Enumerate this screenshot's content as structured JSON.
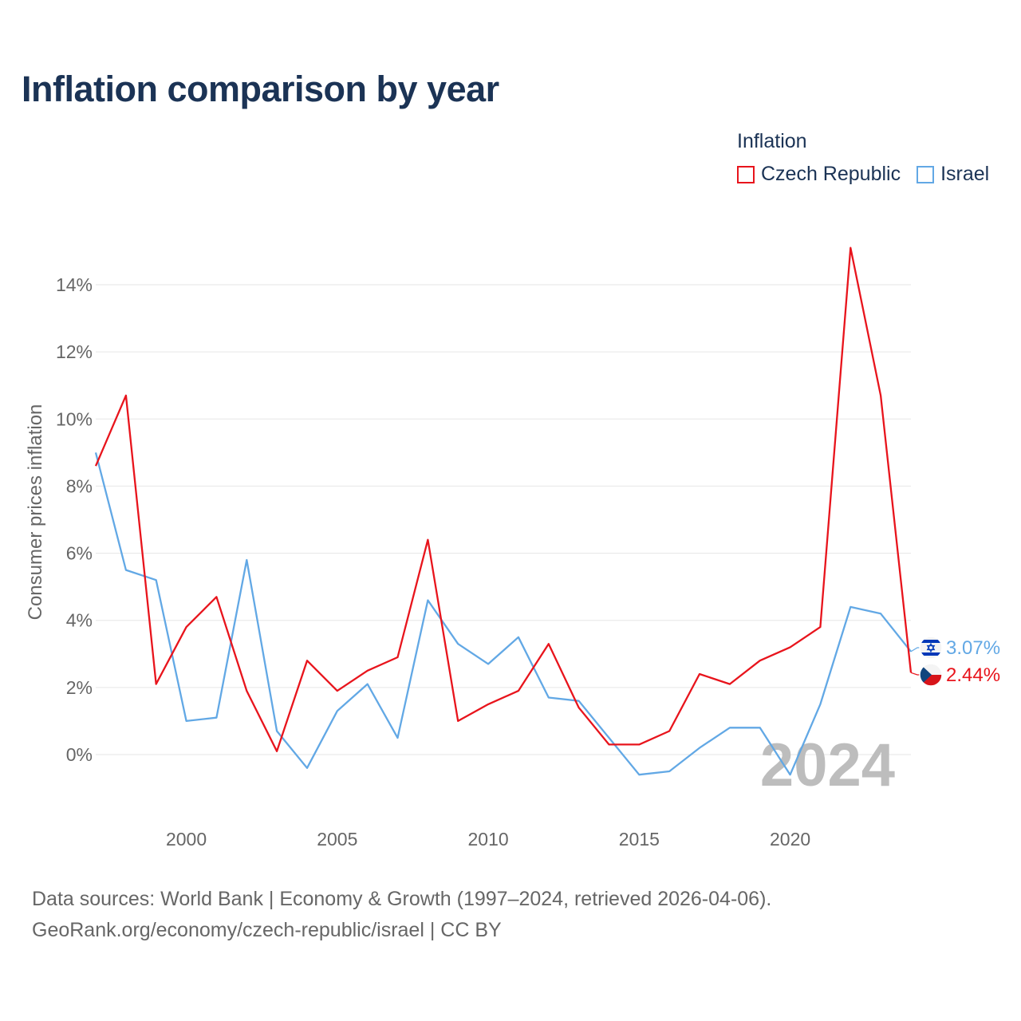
{
  "title": "Inflation comparison by year",
  "legend": {
    "title": "Inflation",
    "items": [
      {
        "label": "Czech Republic",
        "color": "#e8141c"
      },
      {
        "label": "Israel",
        "color": "#62a8e5"
      }
    ]
  },
  "source": {
    "line1": "Data sources: World Bank | Economy & Growth (1997–2024, retrieved 2026-04-06).",
    "line2": "GeoRank.org/economy/czech-republic/israel | CC BY"
  },
  "chart_data": {
    "type": "line",
    "title": "Inflation comparison by year",
    "xlabel": "",
    "ylabel": "Consumer prices inflation",
    "xlim": [
      1997,
      2024
    ],
    "ylim": [
      -1.5,
      15.5
    ],
    "yticks": [
      0,
      2,
      4,
      6,
      8,
      10,
      12,
      14
    ],
    "ytick_labels": [
      "0%",
      "2%",
      "4%",
      "6%",
      "8%",
      "10%",
      "12%",
      "14%"
    ],
    "xticks": [
      2000,
      2005,
      2010,
      2015,
      2020
    ],
    "xtick_labels": [
      "2000",
      "2005",
      "2010",
      "2015",
      "2020"
    ],
    "grid": true,
    "year_watermark": "2024",
    "x": [
      1997,
      1998,
      1999,
      2000,
      2001,
      2002,
      2003,
      2004,
      2005,
      2006,
      2007,
      2008,
      2009,
      2010,
      2011,
      2012,
      2013,
      2014,
      2015,
      2016,
      2017,
      2018,
      2019,
      2020,
      2021,
      2022,
      2023,
      2024
    ],
    "series": [
      {
        "name": "Czech Republic",
        "color": "#e8141c",
        "end_label": "2.44%",
        "values": [
          8.6,
          10.7,
          2.1,
          3.8,
          4.7,
          1.9,
          0.1,
          2.8,
          1.9,
          2.5,
          2.9,
          6.4,
          1.0,
          1.5,
          1.9,
          3.3,
          1.4,
          0.3,
          0.3,
          0.7,
          2.4,
          2.1,
          2.8,
          3.2,
          3.8,
          15.1,
          10.7,
          2.44
        ]
      },
      {
        "name": "Israel",
        "color": "#62a8e5",
        "end_label": "3.07%",
        "values": [
          9.0,
          5.5,
          5.2,
          1.0,
          1.1,
          5.8,
          0.7,
          -0.4,
          1.3,
          2.1,
          0.5,
          4.6,
          3.3,
          2.7,
          3.5,
          1.7,
          1.6,
          0.5,
          -0.6,
          -0.5,
          0.2,
          0.8,
          0.8,
          -0.6,
          1.5,
          4.4,
          4.2,
          3.07
        ]
      }
    ]
  }
}
